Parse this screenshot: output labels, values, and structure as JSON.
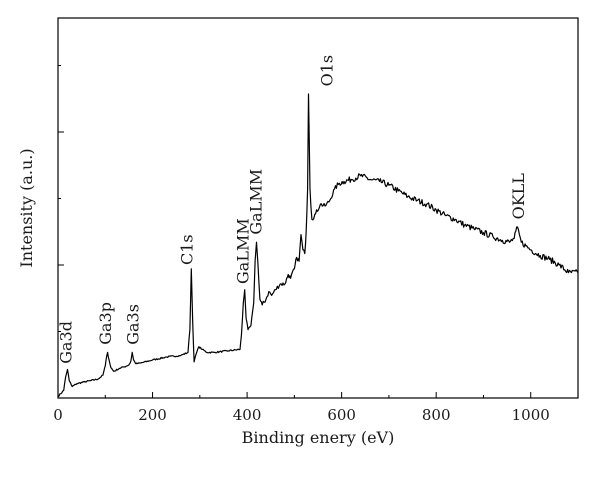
{
  "chart_data": {
    "type": "line",
    "title": "",
    "xlabel": "Binding enery (eV)",
    "ylabel": "Intensity (a.u.)",
    "xlim": [
      0,
      1100
    ],
    "ylim": [
      0,
      1
    ],
    "xticks": [
      0,
      200,
      400,
      600,
      800,
      1000
    ],
    "xtick_labels": [
      "0",
      "200",
      "400",
      "600",
      "800",
      "1000"
    ],
    "y_tick_labels_shown": false,
    "grid": false,
    "legend": "none",
    "line_color": "#000000",
    "series": [
      {
        "x": [
          0,
          12,
          16,
          20,
          24,
          30,
          40,
          55,
          70,
          85,
          95,
          100,
          103,
          105,
          108,
          112,
          118,
          130,
          140,
          150,
          154,
          157,
          160,
          165,
          175,
          200,
          230,
          260,
          275,
          279,
          282,
          285,
          288,
          292,
          298,
          305,
          315,
          330,
          360,
          385,
          388,
          392,
          395,
          398,
          402,
          408,
          414,
          417,
          420,
          423,
          427,
          432,
          440,
          446,
          452,
          460,
          470,
          480,
          487,
          492,
          500,
          505,
          510,
          514,
          518,
          522,
          525,
          528,
          530,
          533,
          537,
          545,
          555,
          565,
          575,
          585,
          595,
          605,
          620,
          640,
          660,
          680,
          700,
          720,
          740,
          760,
          780,
          800,
          820,
          840,
          860,
          880,
          900,
          920,
          940,
          955,
          965,
          972,
          976,
          980,
          990,
          1000,
          1020,
          1040,
          1060,
          1080,
          1100
        ],
        "y": [
          0.004,
          0.02,
          0.055,
          0.075,
          0.045,
          0.03,
          0.038,
          0.042,
          0.046,
          0.05,
          0.06,
          0.085,
          0.11,
          0.12,
          0.1,
          0.08,
          0.07,
          0.078,
          0.082,
          0.087,
          0.096,
          0.12,
          0.1,
          0.09,
          0.092,
          0.1,
          0.108,
          0.112,
          0.12,
          0.18,
          0.34,
          0.2,
          0.095,
          0.115,
          0.135,
          0.128,
          0.12,
          0.12,
          0.124,
          0.128,
          0.165,
          0.25,
          0.285,
          0.21,
          0.18,
          0.19,
          0.25,
          0.36,
          0.41,
          0.35,
          0.26,
          0.245,
          0.26,
          0.28,
          0.27,
          0.285,
          0.3,
          0.3,
          0.325,
          0.315,
          0.34,
          0.37,
          0.36,
          0.43,
          0.39,
          0.38,
          0.44,
          0.55,
          0.8,
          0.55,
          0.47,
          0.485,
          0.51,
          0.505,
          0.52,
          0.55,
          0.565,
          0.57,
          0.575,
          0.585,
          0.575,
          0.57,
          0.56,
          0.545,
          0.53,
          0.52,
          0.51,
          0.495,
          0.48,
          0.47,
          0.455,
          0.445,
          0.435,
          0.425,
          0.415,
          0.41,
          0.42,
          0.45,
          0.43,
          0.41,
          0.4,
          0.39,
          0.375,
          0.365,
          0.35,
          0.33,
          0.33
        ]
      }
    ],
    "annotations": [
      {
        "text": "Ga3d",
        "x": 18,
        "y": 0.09
      },
      {
        "text": "Ga3p",
        "x": 102,
        "y": 0.14
      },
      {
        "text": "Ga3s",
        "x": 160,
        "y": 0.14
      },
      {
        "text": "C1s",
        "x": 274,
        "y": 0.35
      },
      {
        "text": "GaLMM",
        "x": 392,
        "y": 0.3
      },
      {
        "text": "GaLMM",
        "x": 420,
        "y": 0.43
      },
      {
        "text": "O1s",
        "x": 570,
        "y": 0.82
      },
      {
        "text": "OKLL",
        "x": 975,
        "y": 0.47
      }
    ]
  }
}
